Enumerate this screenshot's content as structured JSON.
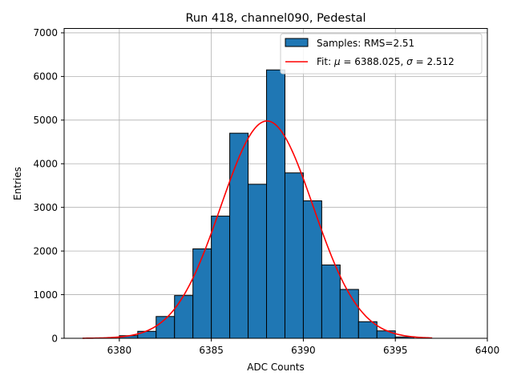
{
  "chart_data": {
    "type": "bar",
    "title": "Run 418, channel090, Pedestal",
    "xlabel": "ADC Counts",
    "ylabel": "Entries",
    "xlim": [
      6377,
      6400
    ],
    "ylim": [
      0,
      7100
    ],
    "xticks": [
      6380,
      6385,
      6390,
      6395,
      6400
    ],
    "yticks": [
      0,
      1000,
      2000,
      3000,
      4000,
      5000,
      6000,
      7000
    ],
    "grid": true,
    "bar_color": "#1f77b4",
    "fit_color": "#ff0000",
    "histogram": {
      "name": "Samples: RMS=2.51",
      "bins": [
        {
          "x0": 6380,
          "x1": 6381,
          "value": 60
        },
        {
          "x0": 6381,
          "x1": 6382,
          "value": 160
        },
        {
          "x0": 6382,
          "x1": 6383,
          "value": 500
        },
        {
          "x0": 6383,
          "x1": 6384,
          "value": 980
        },
        {
          "x0": 6384,
          "x1": 6385,
          "value": 2050
        },
        {
          "x0": 6385,
          "x1": 6386,
          "value": 2800
        },
        {
          "x0": 6386,
          "x1": 6387,
          "value": 4700
        },
        {
          "x0": 6387,
          "x1": 6388,
          "value": 3530
        },
        {
          "x0": 6388,
          "x1": 6389,
          "value": 6150
        },
        {
          "x0": 6389,
          "x1": 6390,
          "value": 3790
        },
        {
          "x0": 6390,
          "x1": 6391,
          "value": 3150
        },
        {
          "x0": 6391,
          "x1": 6392,
          "value": 1680
        },
        {
          "x0": 6392,
          "x1": 6393,
          "value": 1120
        },
        {
          "x0": 6393,
          "x1": 6394,
          "value": 380
        },
        {
          "x0": 6394,
          "x1": 6395,
          "value": 170
        },
        {
          "x0": 6395,
          "x1": 6396,
          "value": 30
        }
      ]
    },
    "fit": {
      "name_prefix": "Fit: ",
      "mu_symbol": "μ",
      "sigma_symbol": "σ",
      "mu_text": " = 6388.025, ",
      "sigma_text": " = 2.512",
      "mu": 6388.025,
      "sigma": 2.512,
      "amplitude": 4980,
      "x_range": [
        6378,
        6397
      ]
    },
    "legend_location": "top-right"
  }
}
